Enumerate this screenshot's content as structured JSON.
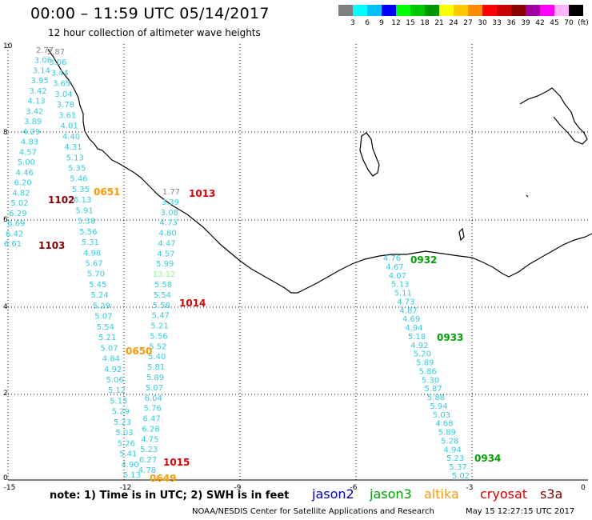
{
  "title": "00:00 – 11:59 UTC 05/14/2017",
  "subtitle": "12 hour collection of altimeter wave heights",
  "legend": {
    "colors": [
      "#808080",
      "#00ffff",
      "#00bfff",
      "#0000ff",
      "#00ff00",
      "#00c800",
      "#009600",
      "#ffff00",
      "#ffc800",
      "#ff8c00",
      "#ff0000",
      "#c80000",
      "#8b0000",
      "#a000a0",
      "#ff00ff",
      "#ffb4ff",
      "#000000"
    ],
    "labels": [
      "3",
      "6",
      "9",
      "12",
      "15",
      "18",
      "21",
      "24",
      "27",
      "30",
      "33",
      "36",
      "39",
      "42",
      "45",
      "70",
      "(ft)"
    ]
  },
  "axes": {
    "x_ticks": [
      "-15",
      "-12",
      "-9",
      "-6",
      "-3",
      "0"
    ],
    "y_ticks": [
      "10",
      "8",
      "6",
      "4",
      "2",
      "0"
    ]
  },
  "colors": {
    "jason2": "#0000cc",
    "jason3": "#00a000",
    "altika": "#ff9900",
    "cryosat": "#dd0000",
    "s3a": "#880000",
    "swh": "#33ccdd",
    "swh_alt": "#80ff80",
    "swh_grey": "#888888"
  },
  "time_labels": [
    {
      "text": "0651",
      "sat": "altika"
    },
    {
      "text": "1102",
      "sat": "s3a"
    },
    {
      "text": "1103",
      "sat": "s3a"
    },
    {
      "text": "1013",
      "sat": "cryosat"
    },
    {
      "text": "1014",
      "sat": "cryosat"
    },
    {
      "text": "0650",
      "sat": "altika"
    },
    {
      "text": "1015",
      "sat": "cryosat"
    },
    {
      "text": "0649",
      "sat": "altika"
    },
    {
      "text": "0932",
      "sat": "jason3"
    },
    {
      "text": "0933",
      "sat": "jason3"
    },
    {
      "text": "0934",
      "sat": "jason3"
    }
  ],
  "tracks": [
    {
      "name": "track-s3a-1102",
      "values": [
        "2.77",
        "3.06",
        "3.14",
        "3.95",
        "3.42",
        "4.13",
        "3.42",
        "3.89",
        "4.29",
        "4.83",
        "4.57",
        "5.00",
        "4.46",
        "6.20",
        "4.82",
        "5.02",
        "6.29",
        "6.69",
        "6.42",
        "6.61"
      ]
    },
    {
      "name": "track-altika-0651",
      "values": [
        "2.87",
        "3.06",
        "3.44",
        "3.65",
        "3.04",
        "3.78",
        "3.61",
        "4.01",
        "4.40",
        "4.31",
        "5.13",
        "5.35",
        "5.46",
        "5.35",
        "6.13",
        "5.91",
        "5.38",
        "5.56",
        "5.31",
        "4.98",
        "5.67",
        "5.70",
        "5.45",
        "5.24",
        "5.29",
        "5.07",
        "5.54",
        "5.21",
        "5.07",
        "4.84",
        "4.92",
        "5.06",
        "5.12",
        "5.13",
        "5.29",
        "5.23",
        "5.03",
        "5.26",
        "5.41",
        "4.90",
        "5.13"
      ]
    },
    {
      "name": "track-cryosat-1013",
      "values": [
        "1.77",
        "3.39",
        "3.08",
        "4.73",
        "4.80",
        "4.47",
        "4.57",
        "5.99",
        "13.12",
        "5.58",
        "5.54",
        "5.58",
        "5.47",
        "5.21",
        "5.56",
        "5.52",
        "5.40",
        "5.81",
        "5.89",
        "5.07",
        "6.04",
        "5.76",
        "6.47",
        "6.28",
        "4.75",
        "5.23",
        "6.27",
        "4.78"
      ]
    },
    {
      "name": "track-jason3-0932",
      "values": [
        "4.76",
        "4.67",
        "4.07",
        "5.13",
        "5.11",
        "4.73",
        "4.87",
        "4.69",
        "4.94",
        "5.18",
        "4.92",
        "5.20",
        "5.89",
        "5.86",
        "5.30",
        "5.87",
        "5.88",
        "5.94",
        "5.03",
        "4.68",
        "5.89",
        "5.28",
        "4.94",
        "5.23",
        "5.37",
        "5.02"
      ]
    }
  ],
  "note": "note: 1) Time is in UTC; 2) SWH is in feet",
  "satellites": [
    "jason2",
    "jason3",
    "altika",
    "cryosat",
    "s3a"
  ],
  "credit": "NOAA/NESDIS Center for Satellite Applications and Research",
  "stamp": "May 15 12:27:15 UTC 2017"
}
